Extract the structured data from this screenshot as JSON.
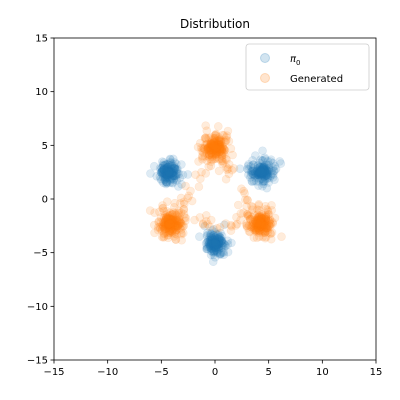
{
  "chart_data": {
    "type": "scatter",
    "title": "Distribution",
    "xlabel": "",
    "ylabel": "",
    "xlim": [
      -15,
      15
    ],
    "ylim": [
      -15,
      15
    ],
    "x_ticks": [
      -15,
      -10,
      -5,
      0,
      5,
      10,
      15
    ],
    "y_ticks": [
      -15,
      -10,
      -5,
      0,
      5,
      10,
      15
    ],
    "x_tick_labels": [
      "−15",
      "−10",
      "−5",
      "0",
      "5",
      "10",
      "15"
    ],
    "y_tick_labels": [
      "−15",
      "−10",
      "−5",
      "0",
      "5",
      "10",
      "15"
    ],
    "grid": false,
    "legend_position": "top-right",
    "series": [
      {
        "name": "π",
        "name_subscript": "0",
        "color": "#1f77b4",
        "clusters": [
          {
            "center": [
              -4.3,
              2.5
            ],
            "spread": 0.9
          },
          {
            "center": [
              4.3,
              2.5
            ],
            "spread": 0.9
          },
          {
            "center": [
              0.0,
              -4.2
            ],
            "spread": 0.9
          }
        ]
      },
      {
        "name": "Generated",
        "color": "#ff7f0e",
        "clusters": [
          {
            "center": [
              0.0,
              4.8
            ],
            "spread": 0.95
          },
          {
            "center": [
              -4.2,
              -2.3
            ],
            "spread": 0.95
          },
          {
            "center": [
              4.2,
              -2.3
            ],
            "spread": 0.95
          }
        ]
      }
    ]
  }
}
